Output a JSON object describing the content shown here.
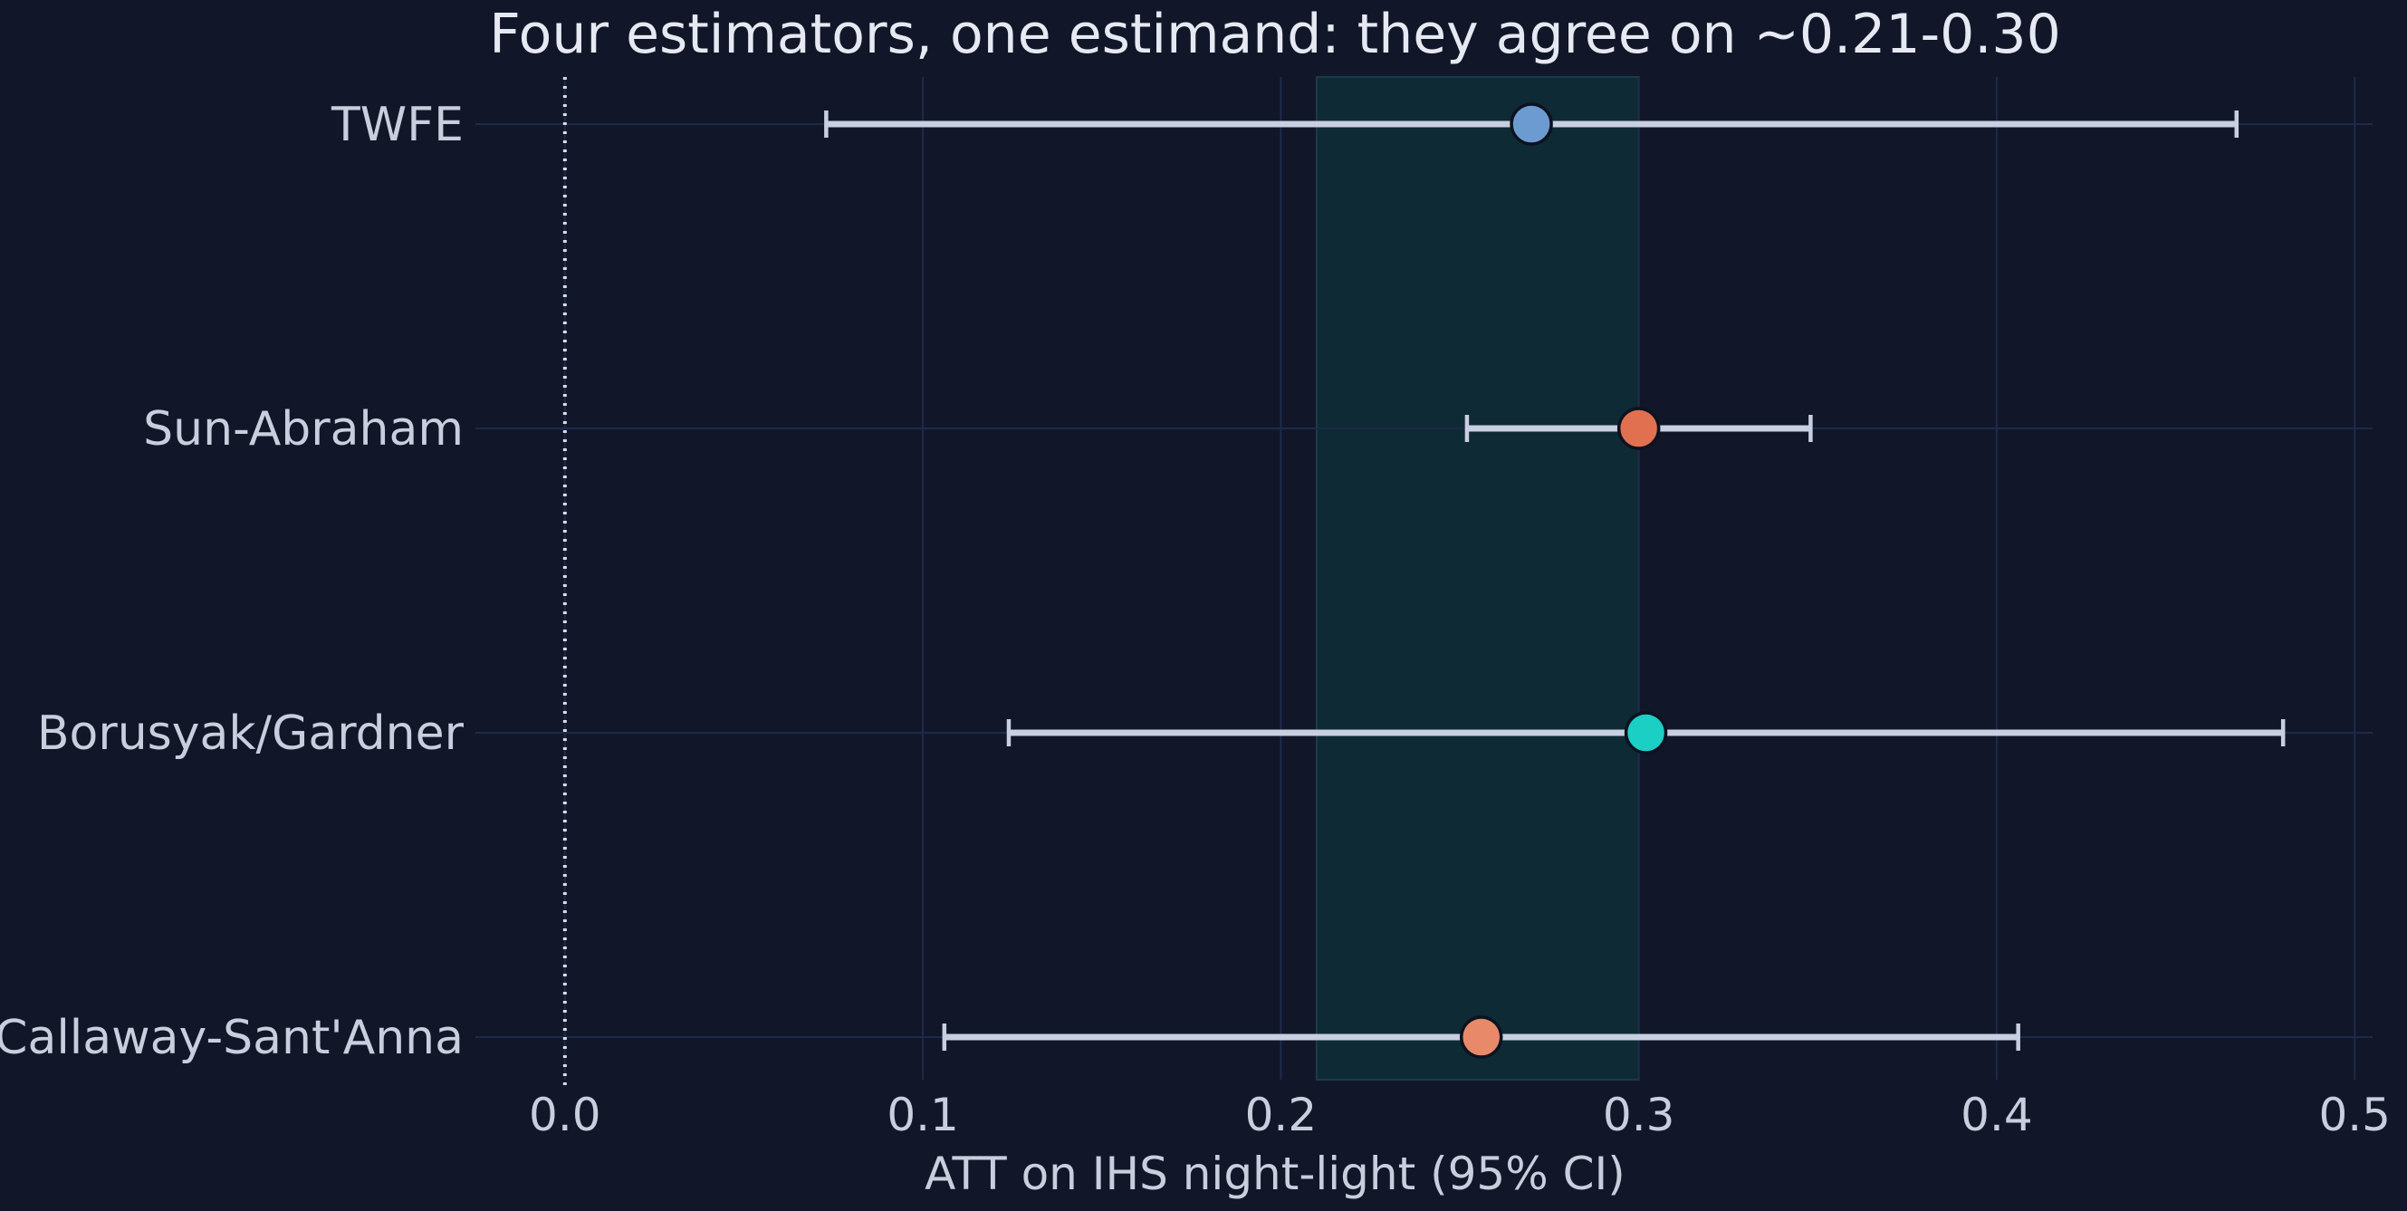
{
  "chart_data": {
    "type": "scatter",
    "title": "Four estimators, one estimand: they agree on ~0.21-0.30",
    "xlabel": "ATT on IHS night-light (95% CI)",
    "ylabel": "",
    "xlim": [
      -0.025,
      0.505
    ],
    "xticks": [
      "0.0",
      "0.1",
      "0.2",
      "0.3",
      "0.4",
      "0.5"
    ],
    "xtick_values": [
      0.0,
      0.1,
      0.2,
      0.3,
      0.4,
      0.5
    ],
    "grid": true,
    "reference_line": {
      "x": 0.0,
      "style": "dotted"
    },
    "agreement_band": {
      "x_start": 0.21,
      "x_end": 0.3
    },
    "categories": [
      "TWFE",
      "Sun-Abraham",
      "Borusyak/Gardner",
      "Callaway-Sant'Anna"
    ],
    "estimates": [
      {
        "label": "TWFE",
        "estimate": 0.27,
        "ci_low": 0.073,
        "ci_high": 0.467,
        "color": "#6b9bd1"
      },
      {
        "label": "Sun-Abraham",
        "estimate": 0.3,
        "ci_low": 0.252,
        "ci_high": 0.348,
        "color": "#e07050"
      },
      {
        "label": "Borusyak/Gardner",
        "estimate": 0.302,
        "ci_low": 0.124,
        "ci_high": 0.48,
        "color": "#1ccfc4"
      },
      {
        "label": "Callaway-Sant'Anna",
        "estimate": 0.256,
        "ci_low": 0.106,
        "ci_high": 0.406,
        "color": "#e8896a"
      }
    ]
  },
  "colors": {
    "background": "#111729",
    "grid": "#1e2a4a",
    "band_fill": "#0e2a35",
    "errorbar": "#c8cfe0",
    "text": "#c9cedd",
    "marker_edge": "#0d1220"
  }
}
